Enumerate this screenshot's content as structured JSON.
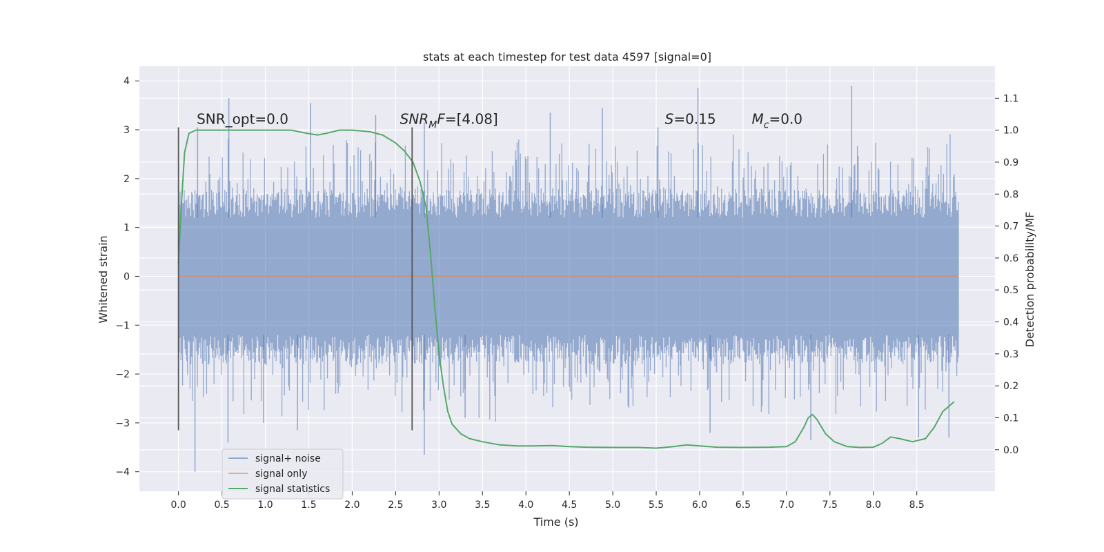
{
  "chart_data": {
    "type": "line",
    "title": "stats at each timestep for test data 4597 [signal=0]",
    "xlabel": "Time (s)",
    "ylabel": "Whitened strain",
    "ylabel_right": "Detection probability/MF",
    "xlim": [
      -0.45,
      9.4
    ],
    "ylim": [
      -4.4,
      4.3
    ],
    "ylim_right": [
      -0.13,
      1.2
    ],
    "x_ticks": [
      0.0,
      0.5,
      1.0,
      1.5,
      2.0,
      2.5,
      3.0,
      3.5,
      4.0,
      4.5,
      5.0,
      5.5,
      6.0,
      6.5,
      7.0,
      7.5,
      8.0,
      8.5
    ],
    "x_tick_labels": [
      "0.0",
      "0.5",
      "1.0",
      "1.5",
      "2.0",
      "2.5",
      "3.0",
      "3.5",
      "4.0",
      "4.5",
      "5.0",
      "5.5",
      "6.0",
      "6.5",
      "7.0",
      "7.5",
      "8.0",
      "8.5"
    ],
    "y_ticks": [
      4,
      3,
      2,
      1,
      0,
      -1,
      -2,
      -3,
      -4
    ],
    "y_tick_labels": [
      "4",
      "3",
      "2",
      "1",
      "0",
      "−1",
      "−2",
      "−3",
      "−4"
    ],
    "y_right_ticks": [
      1.1,
      1.0,
      0.9,
      0.8,
      0.7,
      0.6,
      0.5,
      0.4,
      0.3,
      0.2,
      0.1,
      0.0
    ],
    "y_right_tick_labels": [
      "1.1",
      "1.0",
      "0.9",
      "0.8",
      "0.7",
      "0.6",
      "0.5",
      "0.4",
      "0.3",
      "0.2",
      "0.1",
      "0.0"
    ],
    "grid": true,
    "legend_position": "lower-left",
    "series": [
      {
        "name": "signal+ noise",
        "axis": "left",
        "color": "#4c72b0",
        "style": "noise-band",
        "x_range": [
          0.0,
          8.98
        ],
        "typical_low": -1.2,
        "typical_high": 1.2,
        "spikes": [
          {
            "x": 0.19,
            "y": -4.0
          },
          {
            "x": 0.58,
            "y": 3.65
          },
          {
            "x": 0.57,
            "y": -3.4
          },
          {
            "x": 0.22,
            "y": 3.05
          },
          {
            "x": 1.37,
            "y": -3.15
          },
          {
            "x": 1.52,
            "y": 3.55
          },
          {
            "x": 2.27,
            "y": 3.3
          },
          {
            "x": 2.83,
            "y": -3.65
          },
          {
            "x": 2.83,
            "y": 3.15
          },
          {
            "x": 4.28,
            "y": 3.35
          },
          {
            "x": 4.88,
            "y": 3.45
          },
          {
            "x": 5.98,
            "y": 3.85
          },
          {
            "x": 6.12,
            "y": -3.2
          },
          {
            "x": 7.28,
            "y": -3.35
          },
          {
            "x": 7.75,
            "y": 3.9
          },
          {
            "x": 8.52,
            "y": -3.3
          },
          {
            "x": 8.87,
            "y": -3.3
          },
          {
            "x": 0.98,
            "y": -3.0
          },
          {
            "x": 3.3,
            "y": -2.9
          },
          {
            "x": 5.52,
            "y": 3.05
          }
        ]
      },
      {
        "name": "signal only",
        "axis": "left",
        "color": "#dd8452",
        "x": [
          0.0,
          8.98
        ],
        "y": [
          0.0,
          0.0
        ]
      },
      {
        "name": "signal statistics",
        "axis": "right",
        "color": "#55a868",
        "x": [
          0.0,
          0.03,
          0.07,
          0.12,
          0.2,
          0.3,
          0.45,
          0.7,
          1.0,
          1.3,
          1.48,
          1.6,
          1.7,
          1.85,
          2.0,
          2.2,
          2.35,
          2.5,
          2.6,
          2.7,
          2.78,
          2.85,
          2.9,
          2.95,
          3.0,
          3.05,
          3.1,
          3.15,
          3.25,
          3.35,
          3.5,
          3.7,
          3.9,
          4.1,
          4.3,
          4.5,
          4.7,
          5.0,
          5.3,
          5.5,
          5.7,
          5.85,
          6.0,
          6.2,
          6.5,
          6.8,
          7.0,
          7.1,
          7.2,
          7.25,
          7.3,
          7.35,
          7.45,
          7.55,
          7.7,
          7.85,
          8.0,
          8.1,
          8.2,
          8.3,
          8.45,
          8.6,
          8.7,
          8.8,
          8.93
        ],
        "y": [
          0.58,
          0.75,
          0.93,
          0.99,
          1.0,
          1.0,
          1.0,
          1.0,
          1.0,
          1.0,
          0.99,
          0.985,
          0.99,
          1.0,
          1.0,
          0.995,
          0.985,
          0.96,
          0.935,
          0.9,
          0.84,
          0.76,
          0.62,
          0.45,
          0.3,
          0.2,
          0.12,
          0.08,
          0.05,
          0.035,
          0.025,
          0.015,
          0.012,
          0.012,
          0.013,
          0.01,
          0.008,
          0.007,
          0.007,
          0.005,
          0.01,
          0.015,
          0.012,
          0.008,
          0.007,
          0.008,
          0.01,
          0.025,
          0.07,
          0.1,
          0.11,
          0.095,
          0.05,
          0.025,
          0.01,
          0.007,
          0.008,
          0.02,
          0.04,
          0.035,
          0.025,
          0.035,
          0.07,
          0.12,
          0.15
        ]
      }
    ],
    "vertical_markers": [
      {
        "name": "start-marker",
        "x": 0.0,
        "y_top": 3.05,
        "y_bottom": -3.15,
        "color": "#555555"
      },
      {
        "name": "sample-marker",
        "x": 2.69,
        "y_top": 3.05,
        "y_bottom": -3.15,
        "color": "#555555"
      }
    ],
    "annotations": [
      {
        "name": "snr-opt-annotation",
        "x": 0.21,
        "y": 3.12,
        "parts": [
          {
            "t": "SNR_opt=0.0"
          }
        ]
      },
      {
        "name": "snr-mf-annotation",
        "x": 2.55,
        "y": 3.12,
        "parts": [
          {
            "t": "SNR",
            "i": true
          },
          {
            "t": "M",
            "i": true,
            "sub": true
          },
          {
            "t": "F",
            "i": true
          },
          {
            "t": "=[4.08]"
          }
        ]
      },
      {
        "name": "s-annotation",
        "x": 5.6,
        "y": 3.12,
        "parts": [
          {
            "t": "S",
            "i": true
          },
          {
            "t": "=0.15"
          }
        ]
      },
      {
        "name": "mc-annotation",
        "x": 6.6,
        "y": 3.12,
        "parts": [
          {
            "t": "M",
            "i": true
          },
          {
            "t": "c",
            "i": true,
            "sub": true
          },
          {
            "t": "=0.0"
          }
        ]
      }
    ]
  }
}
